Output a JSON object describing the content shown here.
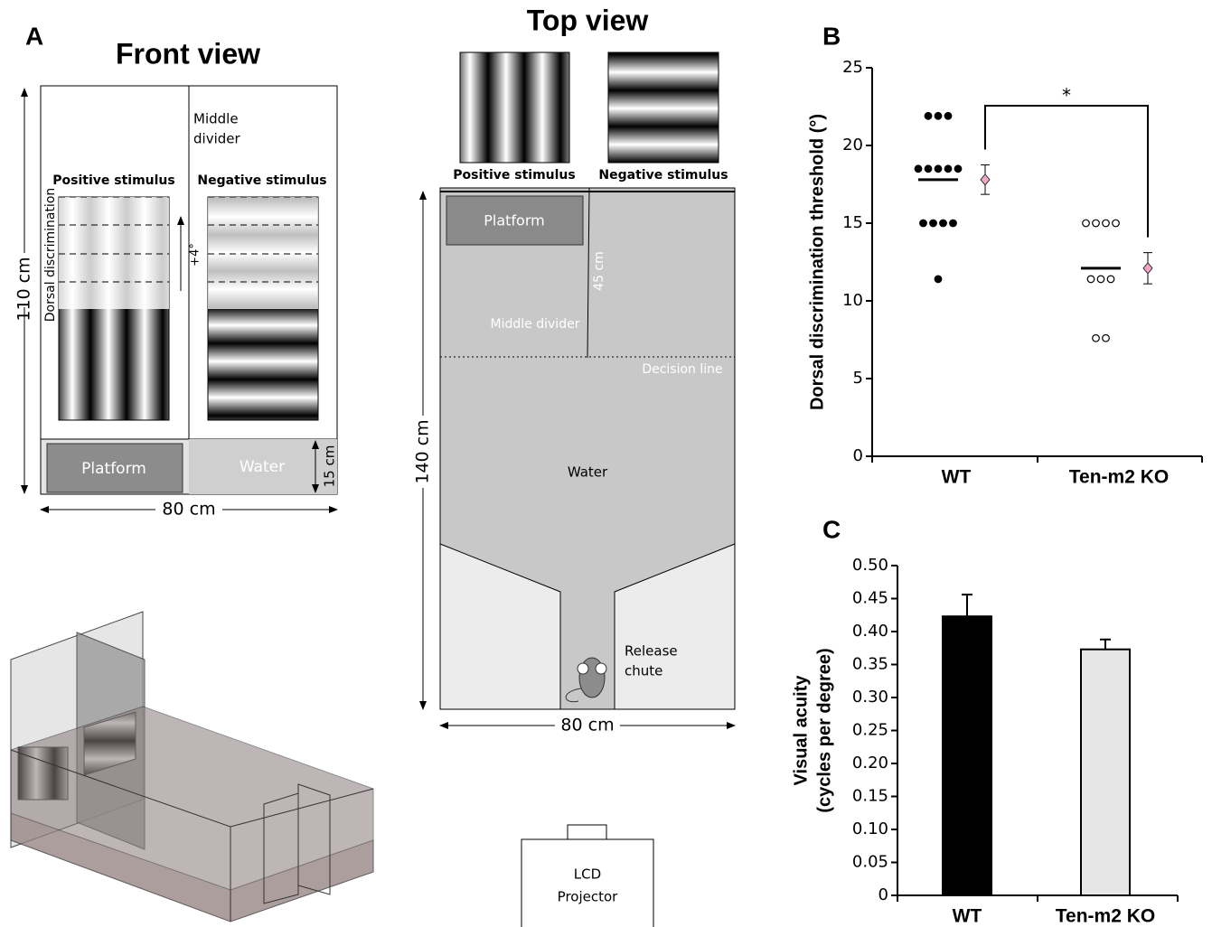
{
  "panel_a": {
    "label": "A",
    "front_view": {
      "title": "Front view",
      "middle_divider": [
        "Middle",
        "divider"
      ],
      "positive_stimulus": "Positive stimulus",
      "negative_stimulus": "Negative stimulus",
      "dorsal_discrimination": "Dorsal discrimination",
      "angle": "+4°",
      "height": "110 cm",
      "width": "80 cm",
      "platform": "Platform",
      "water": "Water",
      "water_depth": "15 cm"
    },
    "top_view": {
      "title": "Top view",
      "positive_stimulus": "Positive stimulus",
      "negative_stimulus": "Negative stimulus",
      "platform": "Platform",
      "divider_length": "45 cm",
      "middle_divider": "Middle divider",
      "decision_line": "Decision line",
      "water": "Water",
      "release_chute": [
        "Release",
        "chute"
      ],
      "length": "140 cm",
      "width": "80 cm",
      "projector": [
        "LCD",
        "Projector"
      ]
    }
  },
  "chart_data": [
    {
      "type": "dotplot",
      "label": "B",
      "ylabel": "Dorsal discrimination threshold (°)",
      "categories": [
        "WT",
        "Ten-m2 KO"
      ],
      "points": [
        [
          21.9,
          21.9,
          21.9,
          18.5,
          18.5,
          18.5,
          18.5,
          18.5,
          15,
          15,
          15,
          15,
          11.4
        ],
        [
          15,
          15,
          15,
          15,
          11.4,
          11.4,
          11.4,
          7.6,
          7.6
        ]
      ],
      "point_fill": [
        "#000000",
        "#ffffff"
      ],
      "means": [
        17.8,
        12.1
      ],
      "errors": [
        0.95,
        1.0
      ],
      "mean_color": "#f4a6c8",
      "annotation": "*",
      "ylim": [
        0,
        25
      ],
      "yticks": [
        0,
        5,
        10,
        15,
        20,
        25
      ]
    },
    {
      "type": "bar",
      "label": "C",
      "ylabel": [
        "Visual acuity",
        "(cycles per degree)"
      ],
      "categories": [
        "WT",
        "Ten-m2 KO"
      ],
      "values": [
        0.423,
        0.373
      ],
      "errors": [
        0.033,
        0.015
      ],
      "colors": [
        "#000000",
        "#e6e6e6"
      ],
      "ylim": [
        0,
        0.5
      ],
      "yticks": [
        0,
        0.05,
        {
          "value": 0.1,
          "label": "0.10"
        },
        0.15,
        {
          "value": 0.2,
          "label": "0.20"
        },
        0.25,
        {
          "value": 0.3,
          "label": "0.30"
        },
        0.35,
        {
          "value": 0.4,
          "label": "0.40"
        },
        0.45,
        {
          "value": 0.5,
          "label": "0.50"
        }
      ]
    }
  ]
}
